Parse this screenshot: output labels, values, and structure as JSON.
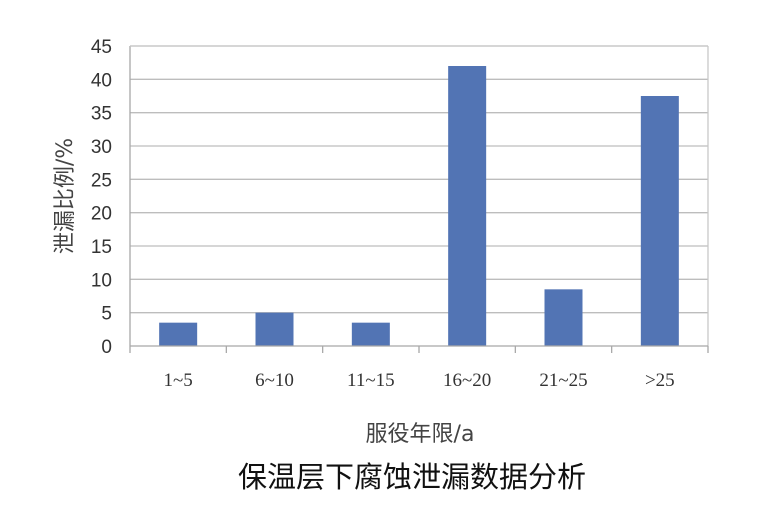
{
  "chart_data": {
    "type": "bar",
    "categories": [
      "1~5",
      "6~10",
      "11~15",
      "16~20",
      "21~25",
      ">25"
    ],
    "values": [
      3.5,
      5,
      3.5,
      42,
      8.5,
      37.5
    ],
    "xlabel": "服役年限/a",
    "ylabel": "泄漏比例/%",
    "ylim": [
      0,
      45
    ],
    "yticks": [
      0,
      5,
      10,
      15,
      20,
      25,
      30,
      35,
      40,
      45
    ],
    "grid": true,
    "legend": "none",
    "bar_color": "#5274b4"
  },
  "caption": "保温层下腐蚀泄漏数据分析"
}
